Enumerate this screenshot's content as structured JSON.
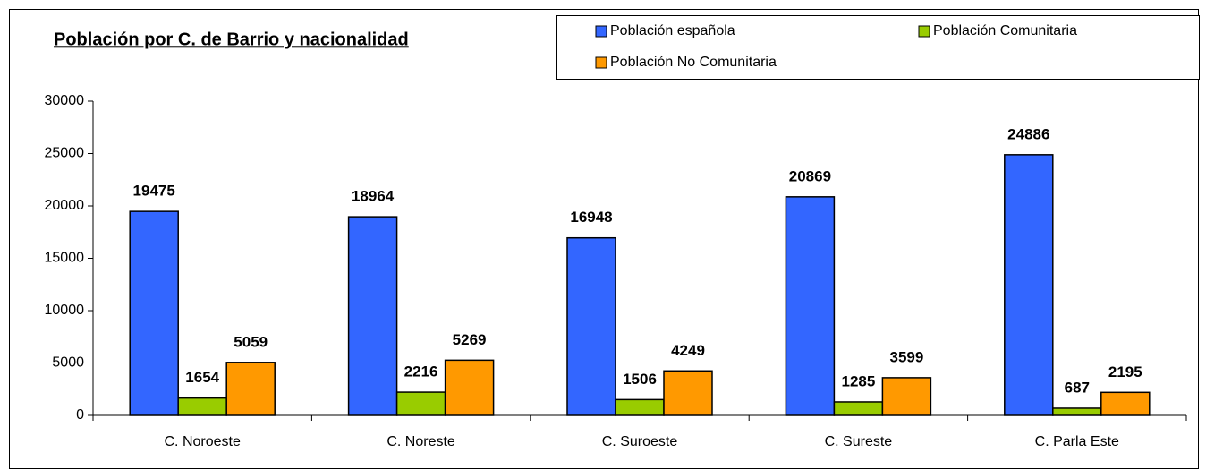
{
  "chart_data": {
    "type": "bar",
    "title": "Población por C. de Barrio y nacionalidad",
    "categories": [
      "C. Noroeste",
      "C. Noreste",
      "C. Suroeste",
      "C. Sureste",
      "C. Parla Este"
    ],
    "series": [
      {
        "name": "Población española",
        "color": "#3366ff",
        "values": [
          19475,
          18964,
          16948,
          20869,
          24886
        ]
      },
      {
        "name": "Población Comunitaria",
        "color": "#99cc00",
        "values": [
          1654,
          2216,
          1506,
          1285,
          687
        ]
      },
      {
        "name": "Población No Comunitaria",
        "color": "#ff9900",
        "values": [
          5059,
          5269,
          4249,
          3599,
          2195
        ]
      }
    ],
    "ylim": [
      0,
      30000
    ],
    "yticks": [
      0,
      5000,
      10000,
      15000,
      20000,
      25000,
      30000
    ],
    "legend": "top-right",
    "grid": false
  }
}
